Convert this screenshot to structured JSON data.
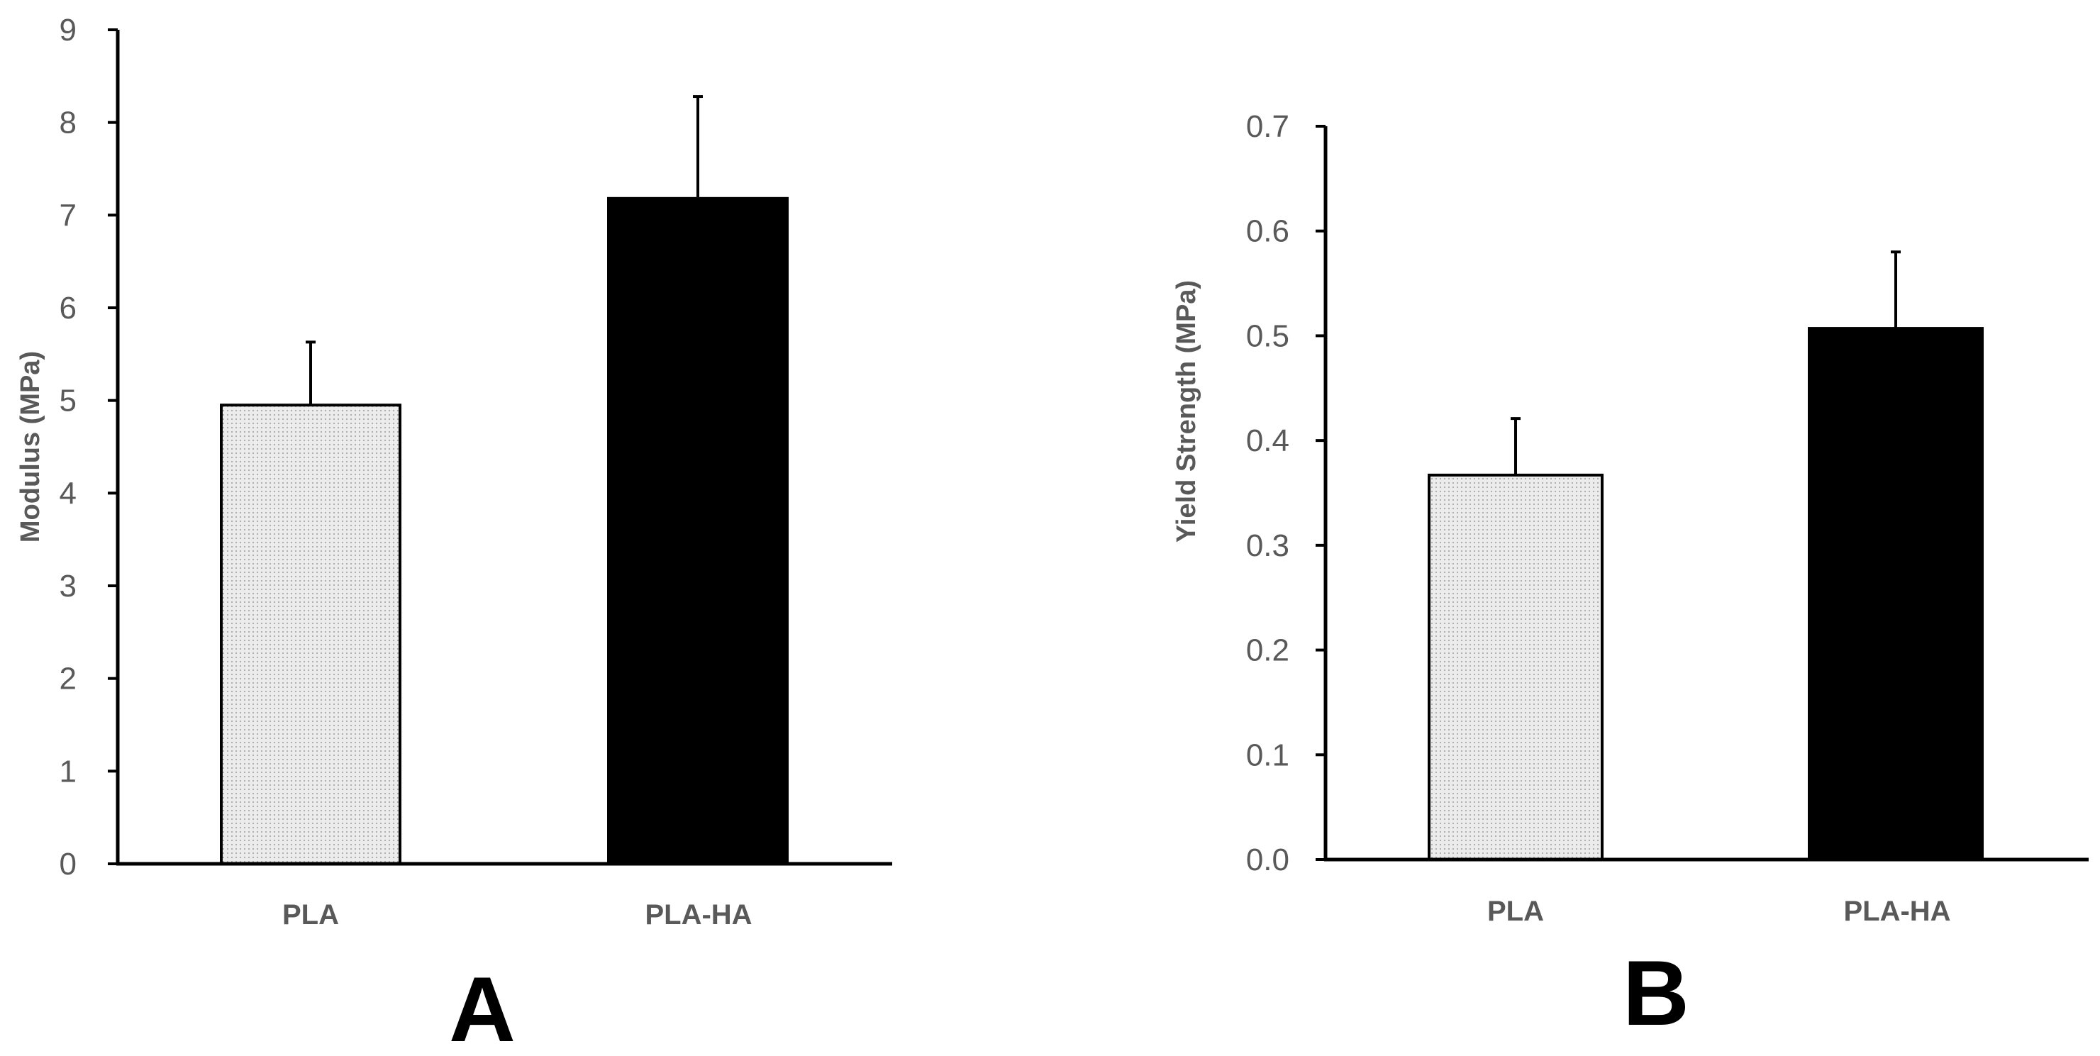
{
  "chart_data": [
    {
      "type": "bar",
      "panel_label": "A",
      "ylabel": "Modulus (MPa)",
      "xlabel": "",
      "categories": [
        "PLA",
        "PLA-HA"
      ],
      "values": [
        4.95,
        7.18
      ],
      "errors": [
        0.68,
        1.1
      ],
      "bar_fills": [
        "dotted-light-gray",
        "#000000"
      ],
      "ylim": [
        0,
        9
      ],
      "yticks": [
        "0",
        "1",
        "2",
        "3",
        "4",
        "5",
        "6",
        "7",
        "8",
        "9"
      ],
      "grid": false
    },
    {
      "type": "bar",
      "panel_label": "B",
      "ylabel": "Yield Strength (MPa)",
      "xlabel": "",
      "categories": [
        "PLA",
        "PLA-HA"
      ],
      "values": [
        0.367,
        0.507
      ],
      "errors": [
        0.054,
        0.073
      ],
      "bar_fills": [
        "dotted-light-gray",
        "#000000"
      ],
      "ylim": [
        0,
        0.7
      ],
      "yticks": [
        "0.0",
        "0.1",
        "0.2",
        "0.3",
        "0.4",
        "0.5",
        "0.6",
        "0.7"
      ],
      "grid": false
    }
  ]
}
